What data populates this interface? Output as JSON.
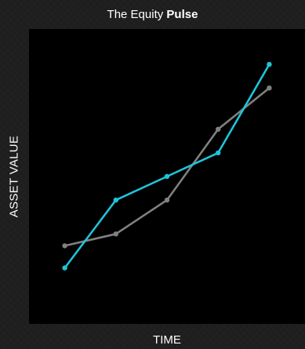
{
  "chart_data": {
    "type": "line",
    "title_prefix": "The Equity",
    "title_emphasis": "Pulse",
    "xlabel": "TIME",
    "ylabel": "ASSET VALUE",
    "x": [
      1,
      2,
      3,
      4,
      5
    ],
    "xlim": [
      0.3,
      5.7
    ],
    "ylim": [
      0,
      100
    ],
    "grid": false,
    "legend": "none",
    "series": [
      {
        "color": "#808080",
        "values": [
          26.5,
          30.5,
          42,
          66,
          80
        ]
      },
      {
        "color": "#1fc4d8",
        "values": [
          19,
          42,
          50,
          58,
          88
        ]
      }
    ]
  }
}
